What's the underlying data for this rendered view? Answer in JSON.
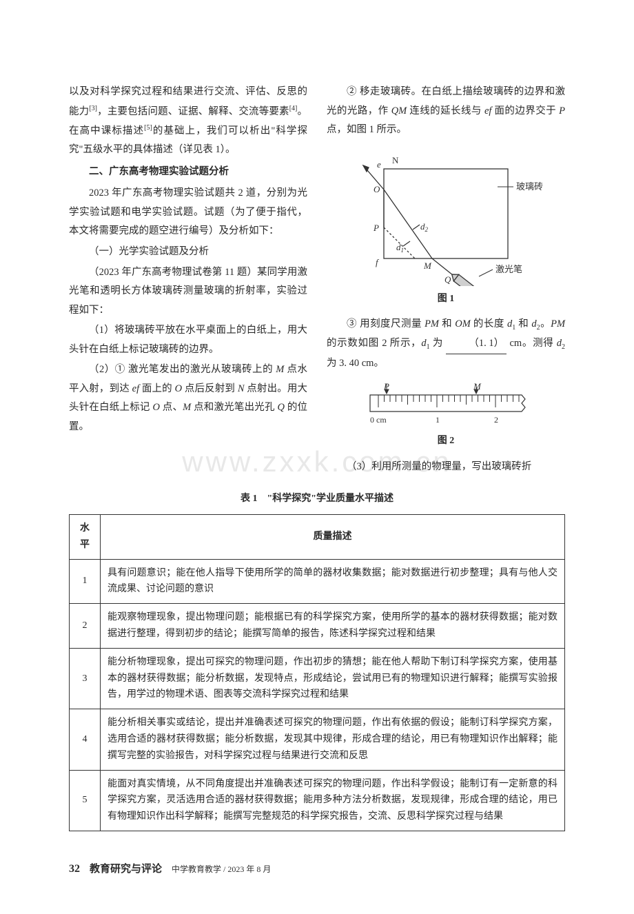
{
  "left": {
    "p1a": "以及对科学探究过程和结果进行交流、评估、反思的能力",
    "p1_ref1": "[3]",
    "p1b": "，主要包括问题、证据、解释、交流等要素",
    "p1_ref2": "[4]",
    "p1c": "。在高中课标描述",
    "p1_ref3": "[5]",
    "p1d": "的基础上，我们可以析出\"科学探究\"五级水平的具体描述（详见表 1）。",
    "h2": "二、广东高考物理实验试题分析",
    "p2": "2023 年广东高考物理实验试题共 2 道，分别为光学实验试题和电学实验试题。试题（为了便于指代，本文将需要完成的题空进行编号）及分析如下：",
    "s1": "（一）光学实验试题及分析",
    "p3": "（2023 年广东高考物理试卷第 11 题）某同学用激光笔和透明长方体玻璃砖测量玻璃的折射率，实验过程如下：",
    "p4": "（1）将玻璃砖平放在水平桌面上的白纸上，用大头针在白纸上标记玻璃砖的边界。",
    "p5": "（2）① 激光笔发出的激光从玻璃砖上的 M 点水平入射，到达 ef 面上的 O 点后反射到 N 点射出。用大头针在白纸上标记 O 点、M 点和激光笔出光孔 Q 的位置。"
  },
  "right": {
    "p1": "② 移走玻璃砖。在白纸上描绘玻璃砖的边界和激光的光路，作 QM 连线的延长线与 ef 面的边界交于 P 点，如图 1 所示。",
    "fig1_caption": "图 1",
    "p2a": "③ 用刻度尺测量 PM 和 OM 的长度 d",
    "p2b": " 和 d",
    "p2c": "。PM 的示数如图 2 所示，d",
    "p2d": " 为 ",
    "blank1": "（1. 1）",
    "p2e": " cm。测得 d",
    "p2f": " 为 3. 40 cm。",
    "fig2_caption": "图 2",
    "p3": "（3）利用所测量的物理量，写出玻璃砖折"
  },
  "fig1": {
    "labels": {
      "e": "e",
      "N": "N",
      "O": "O",
      "P": "P",
      "f": "f",
      "M": "M",
      "Q": "Q",
      "d1": "d",
      "d2": "d",
      "glass": "玻璃砖",
      "laser": "激光笔"
    },
    "colors": {
      "stroke": "#333333",
      "fill_pen": "#bfbfbf"
    }
  },
  "fig2": {
    "labels": {
      "P": "P",
      "M": "M",
      "zero": "0 cm",
      "one": "1",
      "two": "2"
    },
    "colors": {
      "stroke": "#333333"
    }
  },
  "table": {
    "title": "表 1　\"科学探究\"学业质量水平描述",
    "headers": {
      "level": "水平",
      "desc": "质量描述"
    },
    "rows": [
      {
        "level": "1",
        "desc": "具有问题意识；能在他人指导下使用所学的简单的器材收集数据；能对数据进行初步整理；具有与他人交流成果、讨论问题的意识"
      },
      {
        "level": "2",
        "desc": "能观察物理现象，提出物理问题；能根据已有的科学探究方案，使用所学的基本的器材获得数据；能对数据进行整理，得到初步的结论；能撰写简单的报告，陈述科学探究过程和结果"
      },
      {
        "level": "3",
        "desc": "能分析物理现象，提出可探究的物理问题，作出初步的猜想；能在他人帮助下制订科学探究方案，使用基本的器材获得数据；能分析数据，发现特点，形成结论，尝试用已有的物理知识进行解释；能撰写实验报告，用学过的物理术语、图表等交流科学探究过程和结果"
      },
      {
        "level": "4",
        "desc": "能分析相关事实或结论，提出并准确表述可探究的物理问题，作出有依据的假设；能制订科学探究方案，选用合适的器材获得数据；能分析数据，发现其中规律，形成合理的结论，用已有物理知识作出解释；能撰写完整的实验报告，对科学探究过程与结果进行交流和反思"
      },
      {
        "level": "5",
        "desc": "能面对真实情境，从不同角度提出并准确表述可探究的物理问题，作出科学假设；能制订有一定新意的科学探究方案，灵活选用合适的器材获得数据；能用多种方法分析数据，发现规律，形成合理的结论，用已有物理知识作出科学解释；能撰写完整规范的科学探究报告，交流、反思科学探究过程与结果"
      }
    ]
  },
  "watermark": "www.zxxk.com.cn",
  "footer": {
    "page": "32",
    "journal": "教育研究与评论",
    "sub": "中学教育教学 / 2023 年 8 月"
  }
}
